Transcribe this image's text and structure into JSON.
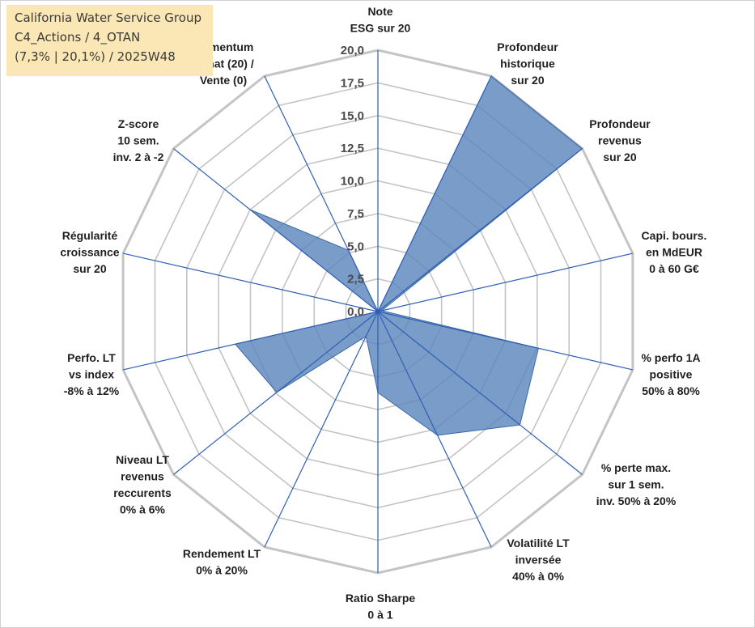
{
  "title_box": {
    "line1": "California Water Service Group",
    "line2": "C4_Actions / 4_OTAN",
    "line3": "(7,3% | 20,1%) / 2025W48"
  },
  "colors": {
    "fill": "#5b86bd",
    "stroke": "#3d6aa5",
    "grid": "#c4c4c4",
    "spoke": "#2f5fb3",
    "title_bg": "#fbe7b5"
  },
  "chart_data": {
    "type": "radar",
    "title": "California Water Service Group",
    "rmin": 0,
    "rmax": 20,
    "step": 2.5,
    "tick_labels": [
      "0,0",
      "2,5",
      "5,0",
      "7,5",
      "10,0",
      "12,5",
      "15,0",
      "17,5",
      "20,0"
    ],
    "categories": [
      [
        "Note",
        "ESG sur 20"
      ],
      [
        "Profondeur",
        "historique",
        "sur 20"
      ],
      [
        "Profondeur",
        "revenus",
        "sur 20"
      ],
      [
        "Capi. bours.",
        "en MdEUR",
        "0 à 60 G€"
      ],
      [
        "% perfo 1A",
        "positive",
        "50% à 80%"
      ],
      [
        "% perte max.",
        "sur 1 sem.",
        "inv. 50% à 20%"
      ],
      [
        "Volatilité LT",
        "inversée",
        "40% à 0%"
      ],
      [
        "Ratio Sharpe",
        "0 à 1"
      ],
      [
        "Rendement LT",
        "0% à 20%"
      ],
      [
        "Niveau LT",
        "revenus",
        "reccurents",
        "0% à 6%"
      ],
      [
        "Perfo. LT",
        "vs index",
        "-8% à 12%"
      ],
      [
        "Régularité",
        "croissance",
        "sur 20"
      ],
      [
        "Z-score",
        "10 sem.",
        "inv. 2 à -2"
      ],
      [
        "Momentum",
        "Achat (20) /",
        "Vente (0)"
      ]
    ],
    "series": [
      {
        "name": "California Water Service Group",
        "values": [
          0,
          20,
          20,
          0.3,
          12.6,
          13.9,
          10.5,
          6.2,
          2.1,
          9.9,
          11.2,
          0,
          12.5,
          5.2
        ]
      }
    ]
  }
}
